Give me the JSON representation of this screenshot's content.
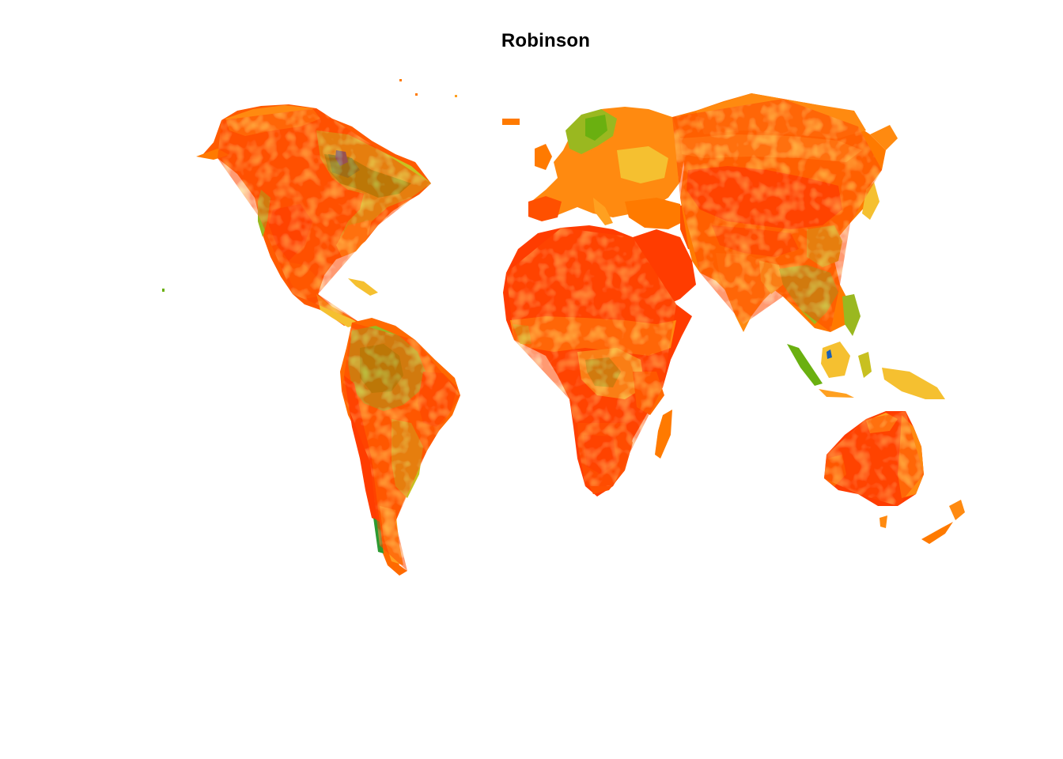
{
  "title": "Robinson",
  "colors": {
    "background": "#ffffff",
    "red": "#ff3c00",
    "red_orange": "#ff5000",
    "orange": "#ff7a00",
    "amber": "#ffa020",
    "yellow": "#f5c030",
    "yellow_green": "#c8c020",
    "olive": "#9ab820",
    "green": "#6ab010",
    "dark_green": "#2c9a30",
    "blue": "#1a5fb4"
  }
}
